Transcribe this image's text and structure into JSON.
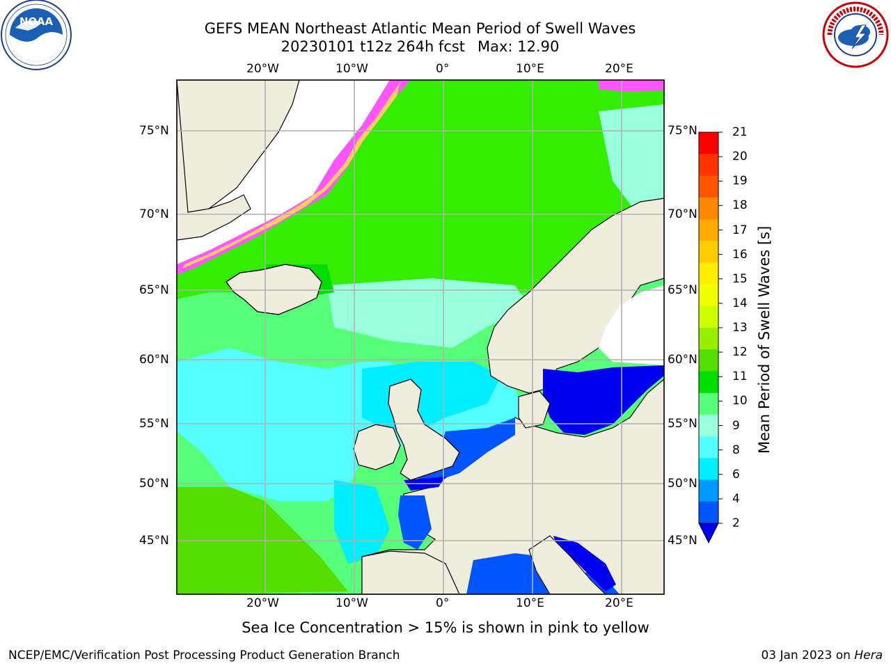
{
  "title": {
    "line1": "GEFS MEAN Northeast Atlantic Mean Period of Swell Waves",
    "run": "20230101 t12z 264h fcst",
    "max_label": "Max: 12.90"
  },
  "logos": {
    "left": {
      "icon": "noaa-logo-icon",
      "text": "NOAA",
      "ring_text": "NATIONAL OCEANIC AND ATMOSPHERIC ADMINISTRATION · U.S. DEPARTMENT OF COMMERCE"
    },
    "right": {
      "icon": "nws-logo-icon",
      "text": "NATIONAL WEATHER SERVICE"
    }
  },
  "axes": {
    "lon_top": [
      "20°W",
      "10°W",
      "0°",
      "10°E",
      "20°E"
    ],
    "lon_bottom": [
      "20°W",
      "10°W",
      "0°",
      "10°E",
      "20°E"
    ],
    "lat_left": [
      "75°N",
      "70°N",
      "65°N",
      "60°N",
      "55°N",
      "50°N",
      "45°N"
    ],
    "lat_right": [
      "75°N",
      "70°N",
      "65°N",
      "60°N",
      "55°N",
      "50°N",
      "45°N"
    ],
    "grid": true
  },
  "colorbar": {
    "title": "Mean Period of Swell Waves [s]",
    "ticks": [
      "21",
      "20",
      "19",
      "18",
      "17",
      "16",
      "15",
      "14",
      "13",
      "12",
      "11",
      "10",
      "9",
      "8",
      "6",
      "4",
      "2"
    ],
    "colors": [
      "#ff0000",
      "#ff3300",
      "#ff5500",
      "#ff8800",
      "#ffaa00",
      "#ffcc00",
      "#ffee00",
      "#eeff00",
      "#ccff00",
      "#99ee00",
      "#55dd00",
      "#00dd00",
      "#55ff77",
      "#99ffdd",
      "#55ffff",
      "#00eeff",
      "#0099ff",
      "#0055ff"
    ],
    "under_color": "#0000ee"
  },
  "sea_ice_note": "Sea Ice Concentration > 15% is shown in pink to yellow",
  "footer": {
    "left": "NCEP/EMC/Verification Post Processing Product Generation Branch",
    "date": "03 Jan 2023 on",
    "host": "Hera"
  }
}
